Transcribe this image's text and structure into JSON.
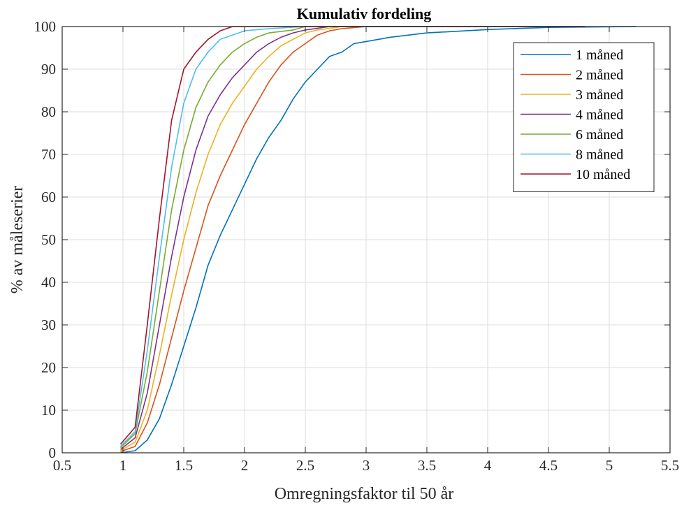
{
  "chart_data": {
    "type": "line",
    "title": "Kumulativ fordeling",
    "xlabel": "Omregningsfaktor til 50 år",
    "ylabel": "% av måleserier",
    "xlim": [
      0.5,
      5.5
    ],
    "ylim": [
      0,
      100
    ],
    "xticks": [
      0.5,
      1,
      1.5,
      2,
      2.5,
      3,
      3.5,
      4,
      4.5,
      5,
      5.5
    ],
    "xtick_labels": [
      "0.5",
      "1",
      "1.5",
      "2",
      "2.5",
      "3",
      "3.5",
      "4",
      "4.5",
      "5",
      "5.5"
    ],
    "yticks": [
      0,
      10,
      20,
      30,
      40,
      50,
      60,
      70,
      80,
      90,
      100
    ],
    "ytick_labels": [
      "0",
      "10",
      "20",
      "30",
      "40",
      "50",
      "60",
      "70",
      "80",
      "90",
      "100"
    ],
    "grid": true,
    "legend_position": "top-right",
    "series": [
      {
        "name": "1 måned",
        "color": "#0072BD",
        "points": [
          [
            0.98,
            0
          ],
          [
            1.1,
            0.5
          ],
          [
            1.2,
            3
          ],
          [
            1.3,
            8
          ],
          [
            1.4,
            16
          ],
          [
            1.5,
            25
          ],
          [
            1.6,
            34
          ],
          [
            1.7,
            44
          ],
          [
            1.8,
            51
          ],
          [
            1.9,
            57
          ],
          [
            2.0,
            63
          ],
          [
            2.1,
            69
          ],
          [
            2.2,
            74
          ],
          [
            2.3,
            78
          ],
          [
            2.4,
            83
          ],
          [
            2.5,
            87
          ],
          [
            2.6,
            90
          ],
          [
            2.7,
            93
          ],
          [
            2.8,
            94
          ],
          [
            2.9,
            96
          ],
          [
            3.0,
            96.5
          ],
          [
            3.2,
            97.5
          ],
          [
            3.5,
            98.5
          ],
          [
            4.0,
            99.3
          ],
          [
            4.5,
            99.8
          ],
          [
            5.22,
            100
          ]
        ]
      },
      {
        "name": "2 måned",
        "color": "#D95319",
        "points": [
          [
            0.98,
            0.3
          ],
          [
            1.1,
            1.5
          ],
          [
            1.2,
            7
          ],
          [
            1.3,
            16
          ],
          [
            1.4,
            27
          ],
          [
            1.5,
            38
          ],
          [
            1.6,
            48
          ],
          [
            1.7,
            58
          ],
          [
            1.8,
            65
          ],
          [
            1.9,
            71
          ],
          [
            2.0,
            77
          ],
          [
            2.1,
            82
          ],
          [
            2.2,
            87
          ],
          [
            2.3,
            91
          ],
          [
            2.4,
            94
          ],
          [
            2.5,
            96
          ],
          [
            2.6,
            98
          ],
          [
            2.7,
            99
          ],
          [
            2.8,
            99.5
          ],
          [
            3.0,
            100
          ],
          [
            4.8,
            100
          ]
        ]
      },
      {
        "name": "3 måned",
        "color": "#EDB120",
        "points": [
          [
            0.98,
            0.5
          ],
          [
            1.1,
            2.5
          ],
          [
            1.2,
            10
          ],
          [
            1.3,
            23
          ],
          [
            1.4,
            37
          ],
          [
            1.5,
            50
          ],
          [
            1.6,
            61
          ],
          [
            1.7,
            70
          ],
          [
            1.8,
            77
          ],
          [
            1.9,
            82
          ],
          [
            2.0,
            86
          ],
          [
            2.1,
            90
          ],
          [
            2.2,
            93
          ],
          [
            2.3,
            95.5
          ],
          [
            2.4,
            97
          ],
          [
            2.5,
            98.5
          ],
          [
            2.6,
            99.2
          ],
          [
            2.8,
            100
          ],
          [
            4.8,
            100
          ]
        ]
      },
      {
        "name": "4 måned",
        "color": "#7E2F8E",
        "points": [
          [
            0.98,
            0.8
          ],
          [
            1.1,
            3.5
          ],
          [
            1.2,
            14
          ],
          [
            1.3,
            30
          ],
          [
            1.4,
            46
          ],
          [
            1.5,
            60
          ],
          [
            1.6,
            71
          ],
          [
            1.7,
            79
          ],
          [
            1.8,
            84
          ],
          [
            1.9,
            88
          ],
          [
            2.0,
            91
          ],
          [
            2.1,
            94
          ],
          [
            2.2,
            96
          ],
          [
            2.3,
            97.5
          ],
          [
            2.4,
            98.5
          ],
          [
            2.5,
            99.2
          ],
          [
            2.7,
            100
          ],
          [
            4.8,
            100
          ]
        ]
      },
      {
        "name": "6 måned",
        "color": "#77AC30",
        "points": [
          [
            0.98,
            1.2
          ],
          [
            1.1,
            4.5
          ],
          [
            1.2,
            19
          ],
          [
            1.3,
            38
          ],
          [
            1.4,
            57
          ],
          [
            1.5,
            71
          ],
          [
            1.6,
            81
          ],
          [
            1.7,
            87
          ],
          [
            1.8,
            91
          ],
          [
            1.9,
            94
          ],
          [
            2.0,
            96
          ],
          [
            2.1,
            97.5
          ],
          [
            2.2,
            98.5
          ],
          [
            2.4,
            99.2
          ],
          [
            2.5,
            100
          ],
          [
            4.8,
            100
          ]
        ]
      },
      {
        "name": "8 måned",
        "color": "#4DBEEE",
        "points": [
          [
            0.98,
            1.5
          ],
          [
            1.1,
            5
          ],
          [
            1.2,
            24
          ],
          [
            1.3,
            46
          ],
          [
            1.4,
            67
          ],
          [
            1.5,
            82
          ],
          [
            1.6,
            90
          ],
          [
            1.7,
            94
          ],
          [
            1.8,
            97
          ],
          [
            1.9,
            98
          ],
          [
            2.0,
            99
          ],
          [
            2.2,
            99.5
          ],
          [
            2.5,
            100
          ],
          [
            4.8,
            100
          ]
        ]
      },
      {
        "name": "10 måned",
        "color": "#A2142F",
        "points": [
          [
            0.98,
            2
          ],
          [
            1.1,
            6
          ],
          [
            1.2,
            30
          ],
          [
            1.3,
            55
          ],
          [
            1.4,
            78
          ],
          [
            1.5,
            90
          ],
          [
            1.6,
            94
          ],
          [
            1.7,
            97
          ],
          [
            1.8,
            99
          ],
          [
            1.9,
            100
          ],
          [
            4.8,
            100
          ]
        ]
      }
    ]
  }
}
